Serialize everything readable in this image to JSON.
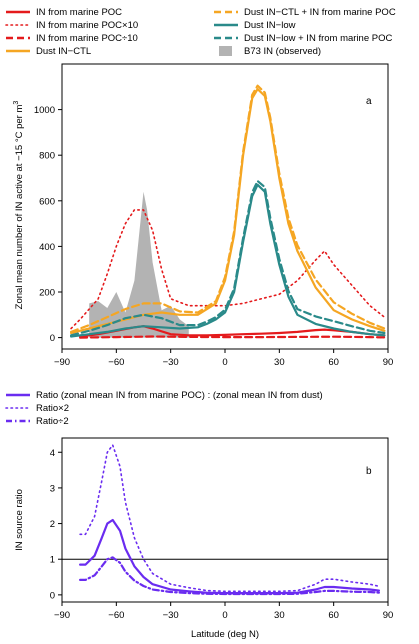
{
  "chart_data": [
    {
      "type": "line",
      "panel_label": "a",
      "xlabel": "",
      "ylabel": "Zonal mean number of IN active at −15 °C per m³",
      "ylabel_main": "Zonal mean number of IN active at −15 °C per m",
      "ylabel_sup": "3",
      "xlim": [
        -90,
        90
      ],
      "ylim": [
        -50,
        1200
      ],
      "x_ticks": [
        -90,
        -60,
        -30,
        0,
        30,
        60,
        90
      ],
      "x_tick_labels": [
        "−90",
        "−60",
        "−30",
        "0",
        "30",
        "60",
        "90"
      ],
      "y_ticks": [
        0,
        200,
        400,
        600,
        800,
        1000
      ],
      "y_tick_labels": [
        "0",
        "200",
        "400",
        "600",
        "800",
        "1000"
      ],
      "grid": false,
      "legend_placement": "above-plot",
      "series": [
        {
          "name": "IN from marine POC",
          "color": "#e41a1c",
          "style": "solid",
          "x": [
            -80,
            -70,
            -60,
            -50,
            -45,
            -40,
            -30,
            -20,
            -10,
            0,
            10,
            20,
            30,
            40,
            50,
            55,
            60,
            70,
            80,
            88
          ],
          "y": [
            5,
            15,
            30,
            45,
            50,
            40,
            15,
            10,
            10,
            12,
            15,
            17,
            20,
            25,
            33,
            35,
            32,
            25,
            15,
            10
          ]
        },
        {
          "name": "IN from marine POC×10",
          "color": "#e41a1c",
          "style": "dotted",
          "x": [
            -85,
            -80,
            -70,
            -65,
            -60,
            -55,
            -50,
            -45,
            -40,
            -35,
            -30,
            -20,
            -10,
            0,
            10,
            20,
            30,
            40,
            50,
            55,
            60,
            70,
            80,
            88
          ],
          "y": [
            40,
            80,
            170,
            280,
            400,
            500,
            560,
            560,
            470,
            300,
            170,
            140,
            140,
            140,
            150,
            170,
            190,
            250,
            340,
            380,
            320,
            230,
            140,
            90
          ]
        },
        {
          "name": "IN from marine POC÷10",
          "color": "#e41a1c",
          "style": "dashed",
          "x": [
            -80,
            -60,
            -40,
            -20,
            0,
            20,
            40,
            60,
            80,
            88
          ],
          "y": [
            0,
            2,
            5,
            3,
            2,
            2,
            3,
            4,
            2,
            1
          ]
        },
        {
          "name": "Dust IN−CTL",
          "color": "#f5a623",
          "style": "solid",
          "x": [
            -85,
            -75,
            -65,
            -55,
            -45,
            -35,
            -25,
            -15,
            -5,
            0,
            5,
            10,
            15,
            18,
            22,
            25,
            30,
            35,
            40,
            45,
            50,
            60,
            70,
            80,
            88
          ],
          "y": [
            20,
            40,
            60,
            80,
            100,
            110,
            100,
            100,
            150,
            250,
            450,
            800,
            1050,
            1090,
            1060,
            950,
            700,
            500,
            380,
            300,
            220,
            120,
            80,
            50,
            30
          ]
        },
        {
          "name": "Dust IN−CTL + IN from marine POC",
          "color": "#f5a623",
          "style": "dashed",
          "x": [
            -85,
            -75,
            -65,
            -55,
            -45,
            -35,
            -25,
            -15,
            -5,
            0,
            5,
            10,
            15,
            18,
            22,
            25,
            30,
            35,
            40,
            45,
            50,
            60,
            70,
            80,
            88
          ],
          "y": [
            25,
            55,
            90,
            125,
            150,
            150,
            115,
            110,
            160,
            265,
            465,
            815,
            1065,
            1105,
            1075,
            965,
            720,
            525,
            405,
            330,
            255,
            155,
            105,
            65,
            40
          ]
        },
        {
          "name": "Dust IN−low",
          "color": "#2a8a8a",
          "style": "solid",
          "x": [
            -85,
            -75,
            -65,
            -55,
            -45,
            -35,
            -25,
            -15,
            -10,
            -5,
            0,
            5,
            10,
            15,
            18,
            22,
            25,
            30,
            35,
            40,
            50,
            60,
            70,
            80,
            88
          ],
          "y": [
            5,
            15,
            25,
            40,
            50,
            45,
            40,
            45,
            60,
            80,
            110,
            200,
            420,
            620,
            670,
            640,
            500,
            320,
            180,
            100,
            60,
            40,
            25,
            15,
            10
          ]
        },
        {
          "name": "Dust IN−low + IN from marine POC",
          "color": "#2a8a8a",
          "style": "dashed",
          "x": [
            -85,
            -75,
            -65,
            -55,
            -45,
            -35,
            -25,
            -15,
            -10,
            -5,
            0,
            5,
            10,
            15,
            18,
            22,
            25,
            30,
            35,
            40,
            50,
            60,
            70,
            80,
            88
          ],
          "y": [
            10,
            30,
            55,
            85,
            100,
            85,
            55,
            55,
            70,
            90,
            122,
            215,
            437,
            637,
            687,
            660,
            525,
            345,
            205,
            125,
            93,
            72,
            50,
            30,
            20
          ]
        },
        {
          "name": "B73 IN (observed)",
          "color": "#b3b3b3",
          "style": "area",
          "x": [
            -75,
            -70,
            -65,
            -60,
            -55,
            -50,
            -45,
            -43,
            -40,
            -35,
            -30,
            -25,
            -20
          ],
          "y": [
            150,
            160,
            130,
            200,
            110,
            250,
            640,
            560,
            330,
            120,
            140,
            80,
            50
          ]
        }
      ]
    },
    {
      "type": "line",
      "panel_label": "b",
      "xlabel": "Latitude (deg N)",
      "ylabel": "IN source ratio",
      "xlim": [
        -90,
        90
      ],
      "ylim": [
        -0.2,
        4.4
      ],
      "x_ticks": [
        -90,
        -60,
        -30,
        0,
        30,
        60,
        90
      ],
      "x_tick_labels": [
        "−90",
        "−60",
        "−30",
        "0",
        "30",
        "60",
        "90"
      ],
      "y_ticks": [
        0,
        1,
        2,
        3,
        4
      ],
      "y_tick_labels": [
        "0",
        "1",
        "2",
        "3",
        "4"
      ],
      "reference_line_y": 1,
      "grid": false,
      "legend_placement": "above-plot",
      "series": [
        {
          "name": "Ratio (zonal mean IN from marine POC) : (zonal mean IN from dust)",
          "color": "#6a2cf0",
          "style": "solid",
          "x": [
            -80,
            -77,
            -72,
            -68,
            -65,
            -62,
            -58,
            -55,
            -50,
            -45,
            -40,
            -30,
            -20,
            -10,
            0,
            10,
            20,
            30,
            40,
            50,
            55,
            60,
            70,
            80,
            85
          ],
          "y": [
            0.85,
            0.85,
            1.1,
            1.6,
            2.0,
            2.1,
            1.8,
            1.3,
            0.8,
            0.5,
            0.3,
            0.15,
            0.1,
            0.06,
            0.05,
            0.05,
            0.05,
            0.05,
            0.06,
            0.15,
            0.22,
            0.22,
            0.18,
            0.15,
            0.12
          ]
        },
        {
          "name": "Ratio×2",
          "color": "#6a2cf0",
          "style": "dotted",
          "x": [
            -80,
            -77,
            -72,
            -68,
            -65,
            -62,
            -58,
            -55,
            -50,
            -45,
            -40,
            -30,
            -20,
            -10,
            0,
            10,
            20,
            30,
            40,
            50,
            55,
            60,
            70,
            80,
            85
          ],
          "y": [
            1.7,
            1.7,
            2.2,
            3.2,
            4.0,
            4.2,
            3.6,
            2.6,
            1.6,
            1.0,
            0.6,
            0.3,
            0.2,
            0.12,
            0.1,
            0.1,
            0.1,
            0.1,
            0.12,
            0.3,
            0.44,
            0.44,
            0.36,
            0.3,
            0.24
          ]
        },
        {
          "name": "Ratio÷2",
          "color": "#6a2cf0",
          "style": "dashdot",
          "x": [
            -80,
            -77,
            -72,
            -68,
            -65,
            -62,
            -58,
            -55,
            -50,
            -45,
            -40,
            -30,
            -20,
            -10,
            0,
            10,
            20,
            30,
            40,
            50,
            55,
            60,
            70,
            80,
            85
          ],
          "y": [
            0.42,
            0.42,
            0.55,
            0.8,
            1.0,
            1.05,
            0.9,
            0.65,
            0.4,
            0.25,
            0.15,
            0.08,
            0.05,
            0.03,
            0.025,
            0.025,
            0.025,
            0.025,
            0.03,
            0.08,
            0.11,
            0.11,
            0.09,
            0.08,
            0.06
          ]
        }
      ]
    }
  ]
}
